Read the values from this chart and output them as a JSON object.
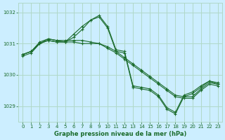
{
  "title": "Graphe pression niveau de la mer (hPa)",
  "background_color": "#cceeff",
  "grid_color": "#b0d8c8",
  "line_color": "#1a6b2a",
  "ylim": [
    1028.5,
    1032.3
  ],
  "xlim": [
    -0.5,
    23.5
  ],
  "yticks": [
    1029,
    1030,
    1031,
    1032
  ],
  "xticks": [
    0,
    1,
    2,
    3,
    4,
    5,
    6,
    7,
    8,
    9,
    10,
    11,
    12,
    13,
    14,
    15,
    16,
    17,
    18,
    19,
    20,
    21,
    22,
    23
  ],
  "series": [
    {
      "x": [
        0,
        1,
        2,
        3,
        4,
        5,
        6,
        7,
        8,
        9,
        10,
        11,
        12,
        13,
        14,
        15,
        16,
        17,
        18,
        19,
        20,
        21,
        22,
        23
      ],
      "y": [
        1030.65,
        1030.75,
        1031.0,
        1031.1,
        1031.05,
        1031.05,
        1031.3,
        1031.55,
        1031.75,
        1031.9,
        1031.55,
        1030.8,
        1030.75,
        1029.65,
        1029.6,
        1029.55,
        1029.35,
        1028.95,
        1028.8,
        1029.35,
        1029.45,
        1029.65,
        1029.8,
        1029.75
      ]
    },
    {
      "x": [
        0,
        1,
        2,
        3,
        4,
        5,
        6,
        7,
        8,
        9,
        10,
        11,
        12,
        13,
        14,
        15,
        16,
        17,
        18,
        19,
        20,
        21,
        22,
        23
      ],
      "y": [
        1030.65,
        1030.75,
        1031.0,
        1031.15,
        1031.1,
        1031.1,
        1031.1,
        1031.1,
        1031.05,
        1031.0,
        1030.85,
        1030.7,
        1030.5,
        1030.3,
        1030.1,
        1029.9,
        1029.7,
        1029.5,
        1029.3,
        1029.25,
        1029.25,
        1029.5,
        1029.7,
        1029.65
      ]
    },
    {
      "x": [
        0,
        1,
        2,
        3,
        4,
        5,
        6,
        7,
        8,
        9,
        10,
        11,
        12,
        13,
        14,
        15,
        16,
        17,
        18,
        19,
        20,
        21,
        22,
        23
      ],
      "y": [
        1030.65,
        1030.75,
        1031.05,
        1031.15,
        1031.1,
        1031.05,
        1031.05,
        1031.0,
        1031.0,
        1031.0,
        1030.9,
        1030.75,
        1030.55,
        1030.35,
        1030.15,
        1029.95,
        1029.75,
        1029.55,
        1029.35,
        1029.3,
        1029.3,
        1029.55,
        1029.75,
        1029.7
      ]
    },
    {
      "x": [
        0,
        1,
        2,
        3,
        4,
        5,
        6,
        7,
        8,
        9,
        10,
        11,
        12,
        13,
        14,
        15,
        16,
        17,
        18,
        19,
        20,
        21,
        22,
        23
      ],
      "y": [
        1030.6,
        1030.7,
        1031.0,
        1031.1,
        1031.05,
        1031.05,
        1031.2,
        1031.45,
        1031.75,
        1031.85,
        1031.5,
        1030.75,
        1030.7,
        1029.6,
        1029.55,
        1029.5,
        1029.3,
        1028.9,
        1028.75,
        1029.3,
        1029.4,
        1029.6,
        1029.8,
        1029.7
      ]
    }
  ]
}
